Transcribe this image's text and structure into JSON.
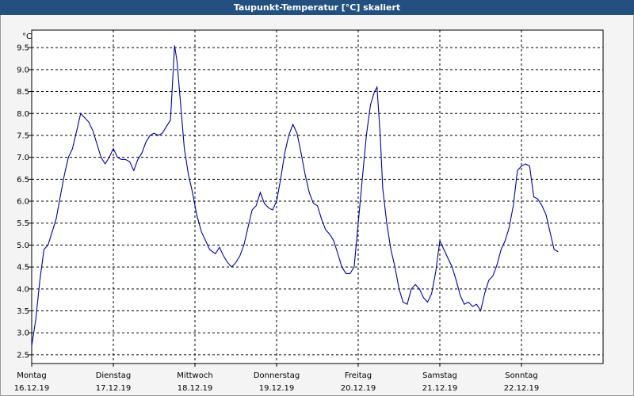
{
  "window": {
    "title": "Taupunkt-Temperatur [°C] skaliert"
  },
  "chart_data": {
    "type": "line",
    "title": "Taupunkt-Temperatur [°C] skaliert",
    "ylabel": "°C",
    "xlabel": "",
    "ylim": [
      2.3,
      9.9
    ],
    "xlim": [
      0,
      7
    ],
    "grid": true,
    "yticks": [
      "9.5",
      "9.0",
      "8.5",
      "8.0",
      "7.5",
      "7.0",
      "6.5",
      "6.0",
      "5.5",
      "5.0",
      "4.5",
      "4.0",
      "3.5",
      "3.0",
      "2.5"
    ],
    "ytick_values": [
      9.5,
      9.0,
      8.5,
      8.0,
      7.5,
      7.0,
      6.5,
      6.0,
      5.5,
      5.0,
      4.5,
      4.0,
      3.5,
      3.0,
      2.5
    ],
    "xticks": [
      {
        "day": "Montag",
        "date": "16.12.19"
      },
      {
        "day": "Dienstag",
        "date": "17.12.19"
      },
      {
        "day": "Mittwoch",
        "date": "18.12.19"
      },
      {
        "day": "Donnerstag",
        "date": "19.12.19"
      },
      {
        "day": "Freitag",
        "date": "20.12.19"
      },
      {
        "day": "Samstag",
        "date": "21.12.19"
      },
      {
        "day": "Sonntag",
        "date": "22.12.19"
      }
    ],
    "series": [
      {
        "name": "Taupunkt",
        "color": "#0000a0",
        "points": [
          [
            0.0,
            2.7
          ],
          [
            0.05,
            3.3
          ],
          [
            0.1,
            4.2
          ],
          [
            0.15,
            4.9
          ],
          [
            0.2,
            5.0
          ],
          [
            0.25,
            5.3
          ],
          [
            0.3,
            5.6
          ],
          [
            0.35,
            6.1
          ],
          [
            0.4,
            6.6
          ],
          [
            0.45,
            7.0
          ],
          [
            0.5,
            7.2
          ],
          [
            0.55,
            7.6
          ],
          [
            0.6,
            8.0
          ],
          [
            0.65,
            7.9
          ],
          [
            0.7,
            7.8
          ],
          [
            0.75,
            7.6
          ],
          [
            0.8,
            7.3
          ],
          [
            0.85,
            7.0
          ],
          [
            0.9,
            6.85
          ],
          [
            0.95,
            7.0
          ],
          [
            1.0,
            7.2
          ],
          [
            1.05,
            7.0
          ],
          [
            1.1,
            6.95
          ],
          [
            1.15,
            6.95
          ],
          [
            1.2,
            6.9
          ],
          [
            1.25,
            6.7
          ],
          [
            1.3,
            6.95
          ],
          [
            1.35,
            7.1
          ],
          [
            1.4,
            7.35
          ],
          [
            1.45,
            7.5
          ],
          [
            1.5,
            7.55
          ],
          [
            1.55,
            7.5
          ],
          [
            1.6,
            7.55
          ],
          [
            1.65,
            7.7
          ],
          [
            1.7,
            7.85
          ],
          [
            1.75,
            9.55
          ],
          [
            1.78,
            9.2
          ],
          [
            1.82,
            8.3
          ],
          [
            1.87,
            7.2
          ],
          [
            1.92,
            6.6
          ],
          [
            1.97,
            6.2
          ],
          [
            2.02,
            5.7
          ],
          [
            2.08,
            5.3
          ],
          [
            2.13,
            5.1
          ],
          [
            2.18,
            4.9
          ],
          [
            2.25,
            4.8
          ],
          [
            2.3,
            4.95
          ],
          [
            2.35,
            4.75
          ],
          [
            2.4,
            4.6
          ],
          [
            2.45,
            4.5
          ],
          [
            2.5,
            4.6
          ],
          [
            2.55,
            4.75
          ],
          [
            2.6,
            5.0
          ],
          [
            2.65,
            5.4
          ],
          [
            2.7,
            5.8
          ],
          [
            2.75,
            5.9
          ],
          [
            2.8,
            6.2
          ],
          [
            2.85,
            5.95
          ],
          [
            2.9,
            5.85
          ],
          [
            2.95,
            5.8
          ],
          [
            3.0,
            6.0
          ],
          [
            3.05,
            6.5
          ],
          [
            3.1,
            7.1
          ],
          [
            3.15,
            7.5
          ],
          [
            3.2,
            7.75
          ],
          [
            3.25,
            7.55
          ],
          [
            3.3,
            7.1
          ],
          [
            3.35,
            6.6
          ],
          [
            3.4,
            6.2
          ],
          [
            3.45,
            5.95
          ],
          [
            3.5,
            5.9
          ],
          [
            3.55,
            5.6
          ],
          [
            3.6,
            5.35
          ],
          [
            3.65,
            5.25
          ],
          [
            3.7,
            5.1
          ],
          [
            3.75,
            4.8
          ],
          [
            3.8,
            4.5
          ],
          [
            3.85,
            4.35
          ],
          [
            3.9,
            4.35
          ],
          [
            3.95,
            4.5
          ],
          [
            4.0,
            5.5
          ],
          [
            4.05,
            6.5
          ],
          [
            4.1,
            7.5
          ],
          [
            4.15,
            8.2
          ],
          [
            4.2,
            8.5
          ],
          [
            4.23,
            8.6
          ],
          [
            4.27,
            7.5
          ],
          [
            4.3,
            6.3
          ],
          [
            4.35,
            5.5
          ],
          [
            4.4,
            4.9
          ],
          [
            4.45,
            4.5
          ],
          [
            4.5,
            4.0
          ],
          [
            4.55,
            3.7
          ],
          [
            4.6,
            3.65
          ],
          [
            4.65,
            4.0
          ],
          [
            4.7,
            4.1
          ],
          [
            4.75,
            4.0
          ],
          [
            4.8,
            3.8
          ],
          [
            4.85,
            3.7
          ],
          [
            4.9,
            3.9
          ],
          [
            4.95,
            4.4
          ],
          [
            5.0,
            5.1
          ],
          [
            5.05,
            4.9
          ],
          [
            5.1,
            4.7
          ],
          [
            5.15,
            4.5
          ],
          [
            5.2,
            4.2
          ],
          [
            5.25,
            3.85
          ],
          [
            5.3,
            3.65
          ],
          [
            5.35,
            3.7
          ],
          [
            5.4,
            3.6
          ],
          [
            5.45,
            3.65
          ],
          [
            5.5,
            3.5
          ],
          [
            5.55,
            3.9
          ],
          [
            5.6,
            4.2
          ],
          [
            5.65,
            4.3
          ],
          [
            5.7,
            4.55
          ],
          [
            5.75,
            4.9
          ],
          [
            5.8,
            5.1
          ],
          [
            5.85,
            5.4
          ],
          [
            5.9,
            5.9
          ],
          [
            5.95,
            6.7
          ],
          [
            6.0,
            6.8
          ],
          [
            6.05,
            6.85
          ],
          [
            6.1,
            6.8
          ],
          [
            6.15,
            6.1
          ],
          [
            6.2,
            6.05
          ],
          [
            6.25,
            5.9
          ],
          [
            6.3,
            5.7
          ],
          [
            6.35,
            5.3
          ],
          [
            6.4,
            4.9
          ],
          [
            6.45,
            4.85
          ]
        ]
      }
    ]
  }
}
